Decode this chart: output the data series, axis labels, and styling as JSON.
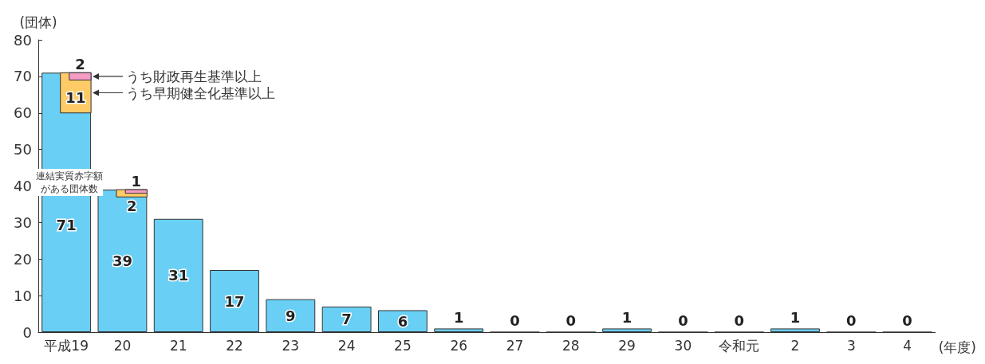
{
  "chart_data": {
    "type": "bar",
    "ylabel": "(団体)",
    "xlabel": "(年度)",
    "categories": [
      "平成19",
      "20",
      "21",
      "22",
      "23",
      "24",
      "25",
      "26",
      "27",
      "28",
      "29",
      "30",
      "令和元",
      "2",
      "3",
      "4"
    ],
    "ylim": [
      0,
      80
    ],
    "yticks": [
      0,
      10,
      20,
      30,
      40,
      50,
      60,
      70,
      80
    ],
    "grid": false,
    "legend": "top left",
    "data_labels": true,
    "series": [
      {
        "name": "連結実質赤字額がある団体数",
        "color": "#6acff4",
        "values": [
          71,
          39,
          31,
          17,
          9,
          7,
          6,
          1,
          0,
          0,
          1,
          0,
          0,
          1,
          0,
          0
        ]
      },
      {
        "name": "うち早期健全化基準以上",
        "color": "#ffcb66",
        "values": [
          11,
          2,
          null,
          null,
          null,
          null,
          null,
          null,
          null,
          null,
          null,
          null,
          null,
          null,
          null,
          null
        ],
        "base": [
          60,
          37,
          null,
          null,
          null,
          null,
          null,
          null,
          null,
          null,
          null,
          null,
          null,
          null,
          null,
          null
        ]
      },
      {
        "name": "うち財政再生基準以上",
        "color": "#f49cc4",
        "values": [
          2,
          1,
          null,
          null,
          null,
          null,
          null,
          null,
          null,
          null,
          null,
          null,
          null,
          null,
          null,
          null
        ],
        "base": [
          69,
          38,
          null,
          null,
          null,
          null,
          null,
          null,
          null,
          null,
          null,
          null,
          null,
          null,
          null,
          null
        ]
      }
    ]
  }
}
